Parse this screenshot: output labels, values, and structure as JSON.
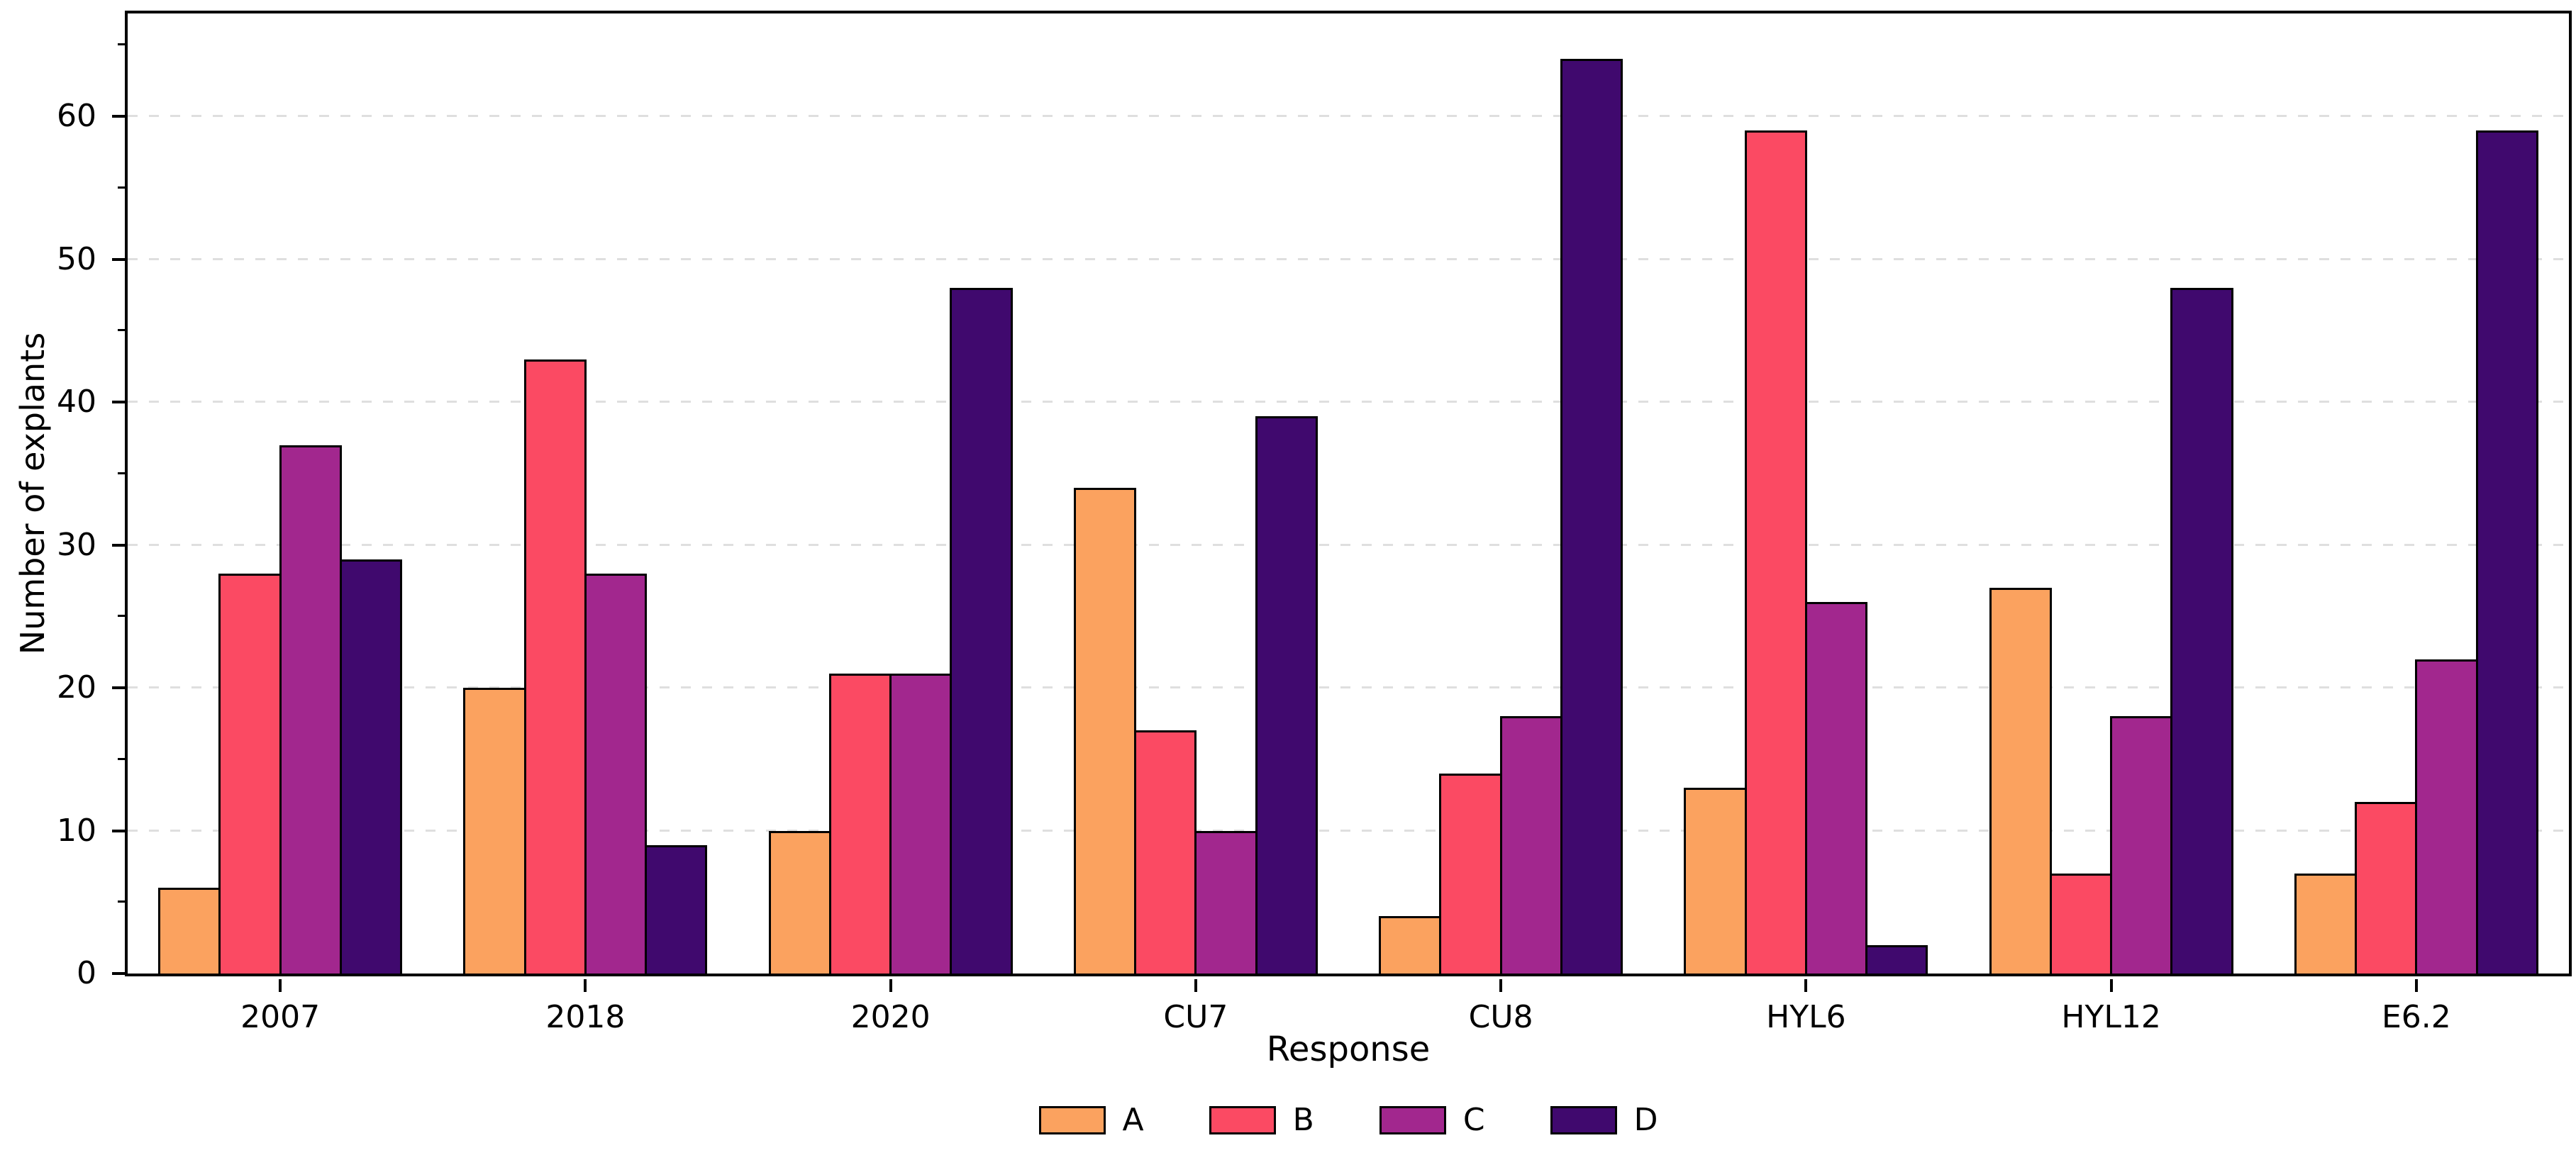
{
  "figure": {
    "background": "#ffffff",
    "text_color": "#000000"
  },
  "chart_data": {
    "type": "bar",
    "title": "",
    "xlabel": "",
    "ylabel": "Number of explants",
    "categories": [
      "2007",
      "2018",
      "2020",
      "CU7",
      "CU8",
      "HYL6",
      "HYL12",
      "E6.2"
    ],
    "series": [
      {
        "name": "A",
        "color": "#fba25f",
        "values": [
          6,
          20,
          10,
          34,
          4,
          13,
          27,
          7
        ]
      },
      {
        "name": "B",
        "color": "#fb4a63",
        "values": [
          28,
          43,
          21,
          17,
          14,
          59,
          7,
          12
        ]
      },
      {
        "name": "C",
        "color": "#a2278e",
        "values": [
          37,
          28,
          21,
          10,
          18,
          26,
          18,
          22
        ]
      },
      {
        "name": "D",
        "color": "#40096e",
        "values": [
          29,
          9,
          48,
          39,
          64,
          2,
          48,
          59
        ]
      }
    ],
    "yticks": [
      0,
      10,
      20,
      30,
      40,
      50,
      60
    ],
    "yticks_minor": [
      5,
      15,
      25,
      35,
      45,
      55,
      65
    ],
    "ylim": [
      0,
      67.2
    ],
    "grid": "horizontal-dashed",
    "grid_color": "#dfdfdf",
    "bar_edge_color": "#000000",
    "legend": {
      "title": "Response",
      "position": "bottom",
      "entries": [
        "A",
        "B",
        "C",
        "D"
      ]
    }
  }
}
